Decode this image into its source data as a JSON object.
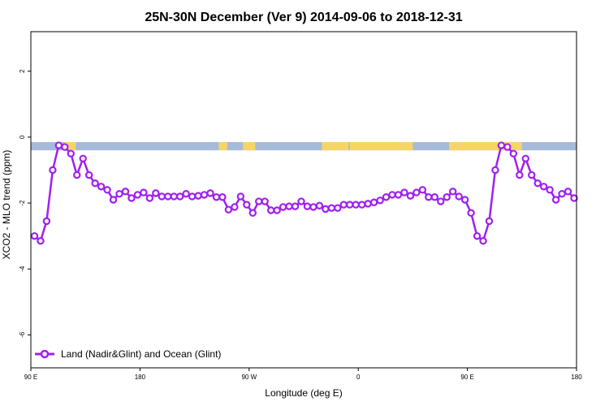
{
  "chart_data": {
    "type": "line",
    "title": "25N-30N December (Ver 9)   2014-09-06 to 2018-12-31",
    "xlabel": "Longitude (deg E)",
    "ylabel": "XCO2 - MLO trend (ppm)",
    "x_ticks": [
      {
        "value": 90,
        "label": "90 E"
      },
      {
        "value": 180,
        "label": "180"
      },
      {
        "value": 270,
        "label": "90 W"
      },
      {
        "value": 360,
        "label": "0"
      },
      {
        "value": 450,
        "label": "90 E"
      },
      {
        "value": 540,
        "label": "180"
      }
    ],
    "y_ticks": [
      {
        "value": 2,
        "label": "2"
      },
      {
        "value": 0,
        "label": "0"
      },
      {
        "value": -2,
        "label": "-2"
      },
      {
        "value": -4,
        "label": "-4"
      },
      {
        "value": -6,
        "label": "-6"
      }
    ],
    "xlim": [
      90,
      540
    ],
    "ylim": [
      -7.0,
      3.2
    ],
    "legend_position": "bottom-left",
    "land_ocean_band": {
      "ocean_color": "#a5bbd9",
      "land_color": "#f7d46a",
      "y_range": [
        -0.4,
        -0.15
      ],
      "land_longitudes": [
        [
          117,
          127
        ],
        [
          245,
          252
        ],
        [
          265,
          275
        ],
        [
          330,
          352
        ],
        [
          353,
          405
        ],
        [
          435,
          495
        ]
      ]
    },
    "series": [
      {
        "name": "Land (Nadir&Glint) and Ocean (Glint)",
        "color": "#a020f0",
        "x": [
          93,
          98,
          103,
          108,
          113,
          118,
          123,
          128,
          133,
          138,
          143,
          148,
          153,
          158,
          163,
          168,
          173,
          178,
          183,
          188,
          193,
          198,
          203,
          208,
          213,
          218,
          223,
          228,
          233,
          238,
          243,
          248,
          253,
          258,
          263,
          268,
          273,
          278,
          283,
          288,
          293,
          298,
          303,
          308,
          313,
          318,
          323,
          328,
          333,
          338,
          343,
          348,
          353,
          358,
          363,
          368,
          373,
          378,
          383,
          388,
          393,
          398,
          403,
          408,
          413,
          418,
          423,
          428,
          433,
          438,
          443,
          448,
          453,
          458,
          463,
          468,
          473,
          478,
          483,
          488,
          493,
          498,
          503,
          508,
          513,
          518,
          523,
          528,
          533,
          538
        ],
        "y": [
          -3.0,
          -3.15,
          -2.55,
          -1.0,
          -0.25,
          -0.3,
          -0.5,
          -1.15,
          -0.65,
          -1.15,
          -1.4,
          -1.5,
          -1.6,
          -1.9,
          -1.72,
          -1.65,
          -1.85,
          -1.75,
          -1.68,
          -1.85,
          -1.7,
          -1.8,
          -1.8,
          -1.8,
          -1.8,
          -1.72,
          -1.8,
          -1.78,
          -1.75,
          -1.7,
          -1.82,
          -1.82,
          -2.2,
          -2.12,
          -1.8,
          -2.05,
          -2.3,
          -1.95,
          -1.95,
          -2.22,
          -2.22,
          -2.12,
          -2.1,
          -2.1,
          -1.95,
          -2.1,
          -2.12,
          -2.08,
          -2.18,
          -2.15,
          -2.15,
          -2.05,
          -2.05,
          -2.05,
          -2.05,
          -2.02,
          -1.98,
          -1.92,
          -1.82,
          -1.75,
          -1.75,
          -1.68,
          -1.78,
          -1.68,
          -1.6,
          -1.82,
          -1.82,
          -1.95,
          -1.82,
          -1.65,
          -1.8,
          -1.9,
          -2.3,
          -3.0,
          -3.15,
          -2.55,
          -1.0,
          -0.25,
          -0.3,
          -0.5,
          -1.15,
          -0.65,
          -1.15,
          -1.4,
          -1.5,
          -1.6,
          -1.9,
          -1.72,
          -1.65,
          -1.85
        ]
      }
    ]
  }
}
